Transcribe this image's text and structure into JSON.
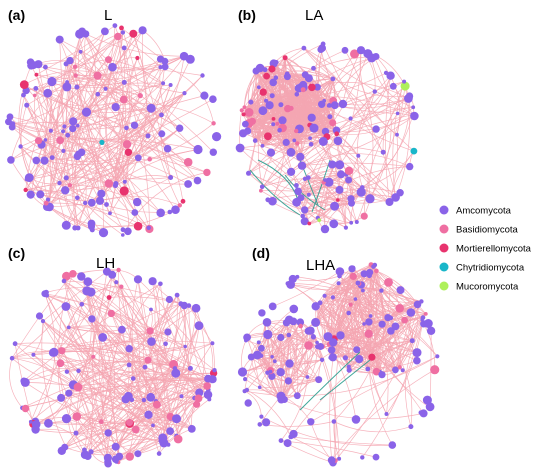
{
  "panels": [
    {
      "letter": "(a)",
      "title": "L"
    },
    {
      "letter": "(b)",
      "title": "LA"
    },
    {
      "letter": "(c)",
      "title": "LH"
    },
    {
      "letter": "(d)",
      "title": "LHA"
    }
  ],
  "legend": [
    {
      "label": "Amcomycota",
      "color": "#8a63e8"
    },
    {
      "label": "Basidiomycota",
      "color": "#ef6fa2"
    },
    {
      "label": "Mortierellomycota",
      "color": "#e8336e"
    },
    {
      "label": "Chytridiomycota",
      "color": "#19b6c9"
    },
    {
      "label": "Mucoromycota",
      "color": "#aef05a"
    }
  ],
  "colors": {
    "edge_positive": "#f4a6b2",
    "edge_negative": "#2a9d8f"
  }
}
